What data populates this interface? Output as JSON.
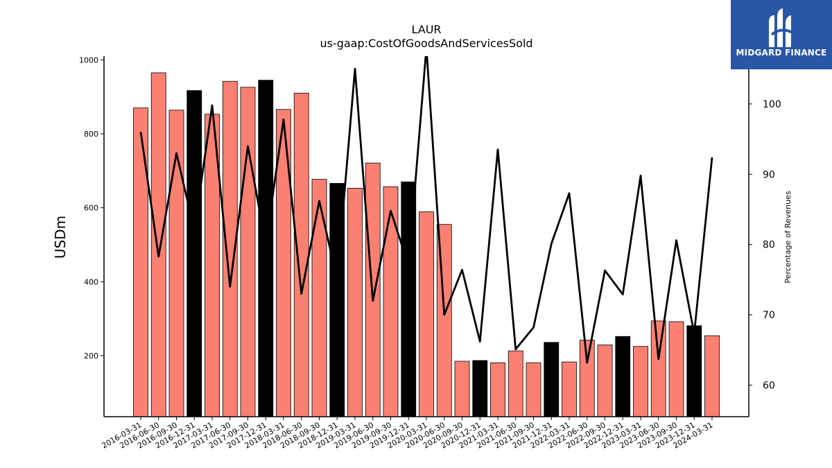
{
  "chart_data": {
    "type": "bar",
    "title": "LAUR",
    "subtitle": "us-gaap:CostOfGoodsAndServicesSold",
    "ylabel": "USDm",
    "ylabel_right": "Percentage of Revenues",
    "ylim": [
      35,
      1010
    ],
    "ylim_right": [
      55.5,
      106.8
    ],
    "yticks": [
      200,
      400,
      600,
      800,
      1000
    ],
    "yticks_right": [
      60,
      70,
      80,
      90,
      100
    ],
    "categories": [
      "2016-03-31",
      "2016-06-30",
      "2016-09-30",
      "2016-12-31",
      "2017-03-31",
      "2017-06-30",
      "2017-09-30",
      "2017-12-31",
      "2018-03-31",
      "2018-06-30",
      "2018-09-30",
      "2018-12-31",
      "2019-03-31",
      "2019-06-30",
      "2019-09-30",
      "2019-12-31",
      "2020-03-31",
      "2020-06-30",
      "2020-09-30",
      "2020-12-31",
      "2021-03-31",
      "2021-06-30",
      "2021-09-30",
      "2021-12-31",
      "2022-03-31",
      "2022-06-30",
      "2022-09-30",
      "2022-12-31",
      "2023-03-31",
      "2023-06-30",
      "2023-09-30",
      "2023-12-31",
      "2024-03-31"
    ],
    "series": [
      {
        "type": "bar",
        "values": [
          870,
          965,
          864,
          917,
          853,
          942,
          926,
          945,
          866,
          910,
          677,
          666,
          653,
          721,
          657,
          670,
          589,
          555,
          185,
          187,
          181,
          213,
          181,
          236,
          183,
          242,
          229,
          252,
          225,
          294,
          292,
          281,
          254
        ],
        "colors": [
          "#fa8072",
          "#fa8072",
          "#fa8072",
          "#000000",
          "#fa8072",
          "#fa8072",
          "#fa8072",
          "#000000",
          "#fa8072",
          "#fa8072",
          "#fa8072",
          "#000000",
          "#fa8072",
          "#fa8072",
          "#fa8072",
          "#000000",
          "#fa8072",
          "#fa8072",
          "#fa8072",
          "#000000",
          "#fa8072",
          "#fa8072",
          "#fa8072",
          "#000000",
          "#fa8072",
          "#fa8072",
          "#fa8072",
          "#000000",
          "#fa8072",
          "#fa8072",
          "#fa8072",
          "#000000",
          "#fa8072"
        ]
      },
      {
        "type": "line",
        "axis": "right",
        "color": "#000000",
        "values": [
          96,
          78.3,
          93,
          82,
          99.8,
          74,
          94,
          80,
          97.8,
          73,
          86.2,
          75,
          105,
          72,
          84.8,
          77,
          108,
          70,
          76.4,
          66.2,
          93.5,
          65.1,
          68.2,
          80.1,
          87.3,
          63.2,
          76.3,
          72.9,
          89.8,
          63.7,
          80.6,
          67.3,
          92.4
        ]
      }
    ],
    "colors": {
      "bar": "#fa8072",
      "bar_highlight": "#000000",
      "line": "#000000"
    },
    "grid": false
  },
  "logo": {
    "text": "MIDGARD FINANCE",
    "bg_color": "#2a56a8"
  }
}
